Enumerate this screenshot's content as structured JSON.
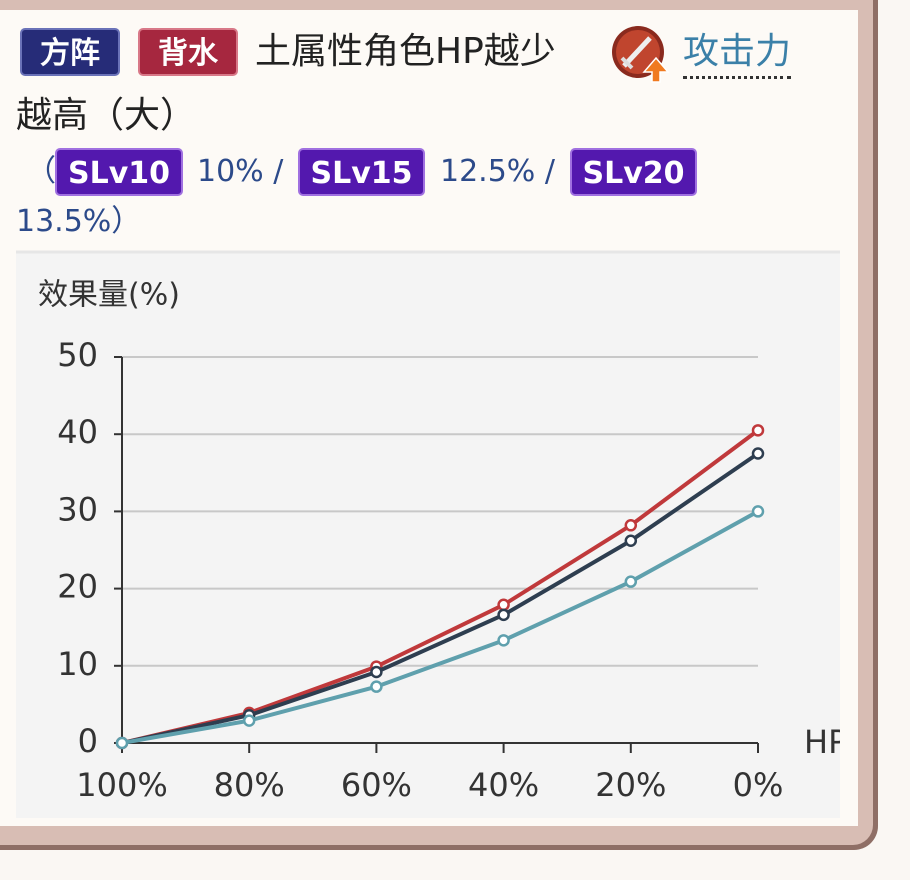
{
  "badges": [
    "方阵",
    "背水"
  ],
  "header": {
    "text": "土属性角色HP越少",
    "link": "攻击力",
    "text2": "越高（大）"
  },
  "levels": {
    "open": "（",
    "items": [
      {
        "label": "SLv10",
        "text": "10% /"
      },
      {
        "label": "SLv15",
        "text": "12.5% /"
      },
      {
        "label": "SLv20",
        "text": "13.5%）"
      }
    ]
  },
  "chart_data": {
    "type": "line",
    "y_label": "效果量(%)",
    "x_label": "HP",
    "categories": [
      "100%",
      "80%",
      "60%",
      "40%",
      "20%",
      "0%"
    ],
    "series": [
      {
        "color": "#c0393b",
        "values": [
          0,
          3.9,
          9.9,
          17.9,
          28.2,
          40.5
        ]
      },
      {
        "color": "#2e3e50",
        "values": [
          0,
          3.6,
          9.2,
          16.6,
          26.2,
          37.5
        ]
      },
      {
        "color": "#5fa0ad",
        "values": [
          0,
          2.9,
          7.3,
          13.3,
          20.9,
          30
        ]
      }
    ],
    "ylim": [
      0,
      50
    ],
    "yticks": [
      0,
      10,
      20,
      30,
      40,
      50
    ],
    "grid": true
  }
}
